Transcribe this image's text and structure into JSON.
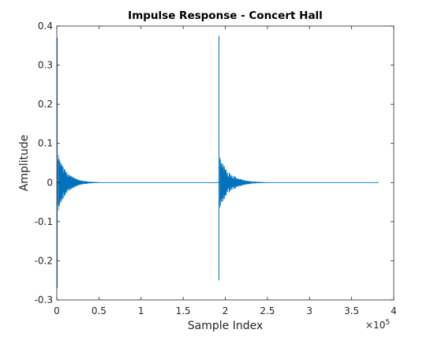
{
  "chart_data": {
    "type": "line",
    "title": "Impulse Response - Concert Hall",
    "xlabel": "Sample Index",
    "ylabel": "Amplitude",
    "xlim": [
      0,
      4
    ],
    "ylim": [
      -0.3,
      0.4
    ],
    "x_multiplier": "×10",
    "x_multiplier_exp": "5",
    "xticks": [
      0,
      0.5,
      1,
      1.5,
      2,
      2.5,
      3,
      3.5,
      4
    ],
    "xtick_labels": [
      "0",
      "0.5",
      "1",
      "1.5",
      "2",
      "2.5",
      "3",
      "3.5",
      "4"
    ],
    "yticks": [
      -0.3,
      -0.2,
      -0.1,
      0,
      0.1,
      0.2,
      0.3,
      0.4
    ],
    "ytick_labels": [
      "-0.3",
      "-0.2",
      "-0.1",
      "0",
      "0.1",
      "0.2",
      "0.3",
      "0.4"
    ],
    "grid": false,
    "series_color": "#0072BD",
    "series": [
      {
        "x_end": 3.82,
        "impulses": [
          {
            "x": 0.0,
            "peak_pos": 0.37,
            "peak_neg": -0.27,
            "tail_amp": 0.075,
            "tail_len": 0.6
          },
          {
            "x": 1.92,
            "peak_pos": 0.375,
            "peak_neg": -0.25,
            "tail_amp": 0.065,
            "tail_len": 0.7
          }
        ]
      }
    ]
  }
}
